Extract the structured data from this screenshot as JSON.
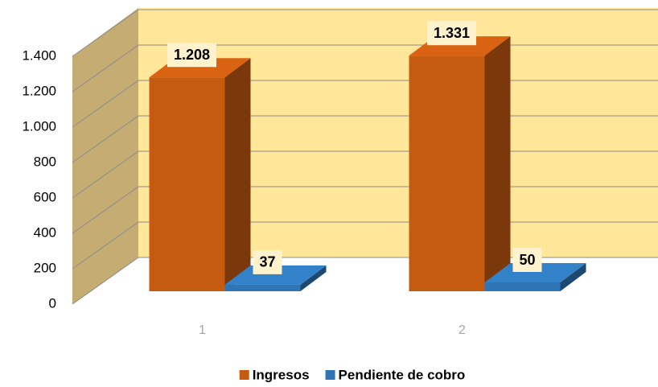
{
  "chart_data": {
    "type": "bar3d",
    "categories": [
      "1",
      "2"
    ],
    "series": [
      {
        "name": "Ingresos",
        "color": "#c55a11",
        "values": [
          1208,
          1331
        ],
        "value_labels": [
          "1.208",
          "1.331"
        ]
      },
      {
        "name": "Pendiente de cobro",
        "color": "#2e75b6",
        "values": [
          37,
          50
        ],
        "value_labels": [
          "37",
          "50"
        ]
      }
    ],
    "ylim": [
      0,
      1400
    ],
    "yticks": [
      0,
      200,
      400,
      600,
      800,
      {
        "value": 1000,
        "label": "1.000"
      },
      {
        "value": 1200,
        "label": "1.200"
      },
      {
        "value": 1400,
        "label": "1.400"
      }
    ],
    "grid": true,
    "legend": "bottom"
  }
}
